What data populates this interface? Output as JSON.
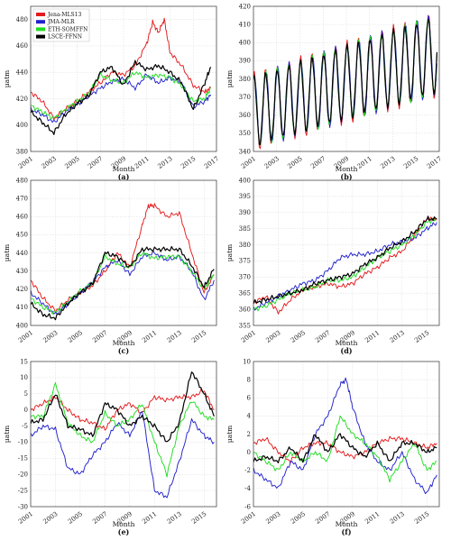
{
  "legend": {
    "entries": [
      {
        "name": "Jena-MLS13",
        "color": "#e41a1c"
      },
      {
        "name": "JMA-MLR",
        "color": "#2222cc"
      },
      {
        "name": "ETH-SOMFFN",
        "color": "#22dd22"
      },
      {
        "name": "LSCE-FFNN",
        "color": "#000000"
      }
    ],
    "placement": "top-left of panel (a)"
  },
  "chart_data": [
    {
      "type": "line",
      "panel": "(a)",
      "xlabel": "Month",
      "ylabel": "µatm",
      "xlim": [
        2001,
        2017
      ],
      "ylim": [
        380,
        490
      ],
      "grid": true,
      "xticks": [
        2001,
        2003,
        2005,
        2007,
        2009,
        2011,
        2013,
        2015,
        2017
      ],
      "yticks": [
        380,
        400,
        420,
        440,
        460,
        480
      ],
      "series": [
        {
          "name": "Jena-MLS13",
          "color": "#e41a1c",
          "x": [
            2001,
            2002,
            2003,
            2004,
            2005,
            2006,
            2007,
            2008,
            2009,
            2010,
            2011,
            2011.5,
            2012,
            2012.5,
            2013,
            2014,
            2015,
            2016,
            2016.5
          ],
          "y": [
            425,
            418,
            405,
            412,
            418,
            425,
            432,
            440,
            438,
            445,
            462,
            478,
            470,
            480,
            455,
            445,
            430,
            425,
            428
          ]
        },
        {
          "name": "JMA-MLR",
          "color": "#2222cc",
          "x": [
            2001,
            2002,
            2003,
            2004,
            2005,
            2006,
            2007,
            2008,
            2009,
            2010,
            2011,
            2012,
            2013,
            2014,
            2015,
            2016,
            2016.5
          ],
          "y": [
            412,
            408,
            402,
            410,
            416,
            422,
            428,
            433,
            435,
            428,
            438,
            432,
            436,
            432,
            414,
            418,
            423
          ]
        },
        {
          "name": "ETH-SOMFFN",
          "color": "#22dd22",
          "x": [
            2001,
            2002,
            2003,
            2004,
            2005,
            2006,
            2007,
            2008,
            2009,
            2010,
            2011,
            2012,
            2013,
            2014,
            2015,
            2016,
            2016.5
          ],
          "y": [
            415,
            410,
            405,
            412,
            418,
            424,
            438,
            434,
            432,
            440,
            436,
            438,
            436,
            430,
            418,
            420,
            428
          ]
        },
        {
          "name": "LSCE-FFNN",
          "color": "#000000",
          "x": [
            2001,
            2002,
            2003,
            2004,
            2005,
            2006,
            2007,
            2008,
            2009,
            2010,
            2011,
            2012,
            2013,
            2014,
            2015,
            2016,
            2016.5
          ],
          "y": [
            410,
            402,
            394,
            408,
            416,
            422,
            440,
            444,
            430,
            448,
            442,
            445,
            440,
            432,
            412,
            432,
            444
          ]
        }
      ]
    },
    {
      "type": "line",
      "panel": "(b)",
      "xlabel": "Month",
      "ylabel": "µatm",
      "xlim": [
        2001,
        2017
      ],
      "ylim": [
        340,
        420
      ],
      "grid": true,
      "xticks": [
        2001,
        2003,
        2005,
        2007,
        2009,
        2011,
        2013,
        2015,
        2017
      ],
      "yticks": [
        340,
        350,
        360,
        370,
        380,
        390,
        400,
        410,
        420
      ],
      "seasonal": {
        "amplitude_at": [
          [
            2001,
            20
          ],
          [
            2016,
            22
          ]
        ],
        "mean_at": [
          [
            2001,
            362
          ],
          [
            2016,
            392
          ]
        ]
      },
      "series": [
        {
          "name": "Jena-MLS13",
          "color": "#e41a1c"
        },
        {
          "name": "JMA-MLR",
          "color": "#2222cc"
        },
        {
          "name": "ETH-SOMFFN",
          "color": "#22dd22"
        },
        {
          "name": "LSCE-FFNN",
          "color": "#000000"
        }
      ]
    },
    {
      "type": "line",
      "panel": "(c)",
      "xlabel": "Month",
      "ylabel": "µatm",
      "xlim": [
        2001,
        2016
      ],
      "ylim": [
        400,
        480
      ],
      "grid": true,
      "xticks": [
        2001,
        2003,
        2005,
        2007,
        2009,
        2011,
        2013,
        2015
      ],
      "yticks": [
        400,
        410,
        420,
        430,
        440,
        450,
        460,
        470,
        480
      ],
      "series": [
        {
          "name": "Jena-MLS13",
          "color": "#e41a1c",
          "x": [
            2001,
            2002,
            2003,
            2004,
            2005,
            2006,
            2007,
            2008,
            2009,
            2010,
            2010.5,
            2011,
            2012,
            2013,
            2014,
            2015,
            2015.8
          ],
          "y": [
            425,
            415,
            408,
            414,
            418,
            422,
            430,
            440,
            432,
            455,
            466,
            466,
            460,
            462,
            440,
            418,
            428
          ]
        },
        {
          "name": "JMA-MLR",
          "color": "#2222cc",
          "x": [
            2001,
            2002,
            2003,
            2004,
            2005,
            2006,
            2007,
            2008,
            2009,
            2010,
            2011,
            2012,
            2013,
            2014,
            2015,
            2015.8
          ],
          "y": [
            418,
            412,
            406,
            412,
            418,
            424,
            432,
            436,
            428,
            438,
            440,
            436,
            438,
            430,
            414,
            425
          ]
        },
        {
          "name": "ETH-SOMFFN",
          "color": "#22dd22",
          "x": [
            2001,
            2002,
            2003,
            2004,
            2005,
            2006,
            2007,
            2008,
            2009,
            2010,
            2011,
            2012,
            2013,
            2014,
            2015,
            2015.8
          ],
          "y": [
            415,
            410,
            407,
            413,
            419,
            423,
            438,
            434,
            432,
            440,
            437,
            438,
            438,
            430,
            420,
            428
          ]
        },
        {
          "name": "LSCE-FFNN",
          "color": "#000000",
          "x": [
            2001,
            2002,
            2003,
            2004,
            2005,
            2006,
            2007,
            2008,
            2009,
            2010,
            2011,
            2012,
            2013,
            2014,
            2015,
            2015.8
          ],
          "y": [
            412,
            406,
            404,
            412,
            418,
            423,
            440,
            438,
            432,
            442,
            442,
            442,
            442,
            433,
            421,
            431
          ]
        }
      ]
    },
    {
      "type": "line",
      "panel": "(d)",
      "xlabel": "Month",
      "ylabel": "µatm",
      "xlim": [
        2001,
        2016
      ],
      "ylim": [
        355,
        400
      ],
      "grid": true,
      "xticks": [
        2001,
        2003,
        2005,
        2007,
        2009,
        2011,
        2013,
        2015
      ],
      "yticks": [
        355,
        360,
        365,
        370,
        375,
        380,
        385,
        390,
        395,
        400
      ],
      "series": [
        {
          "name": "Jena-MLS13",
          "color": "#e41a1c",
          "x": [
            2001,
            2002,
            2003,
            2004,
            2005,
            2006,
            2007,
            2008,
            2009,
            2010,
            2011,
            2012,
            2013,
            2014,
            2015,
            2015.8
          ],
          "y": [
            362,
            364,
            359,
            363,
            366,
            367,
            368,
            367,
            368,
            371,
            373,
            376,
            378,
            383,
            388,
            388
          ]
        },
        {
          "name": "JMA-MLR",
          "color": "#2222cc",
          "x": [
            2001,
            2002,
            2003,
            2004,
            2005,
            2006,
            2007,
            2008,
            2009,
            2010,
            2011,
            2012,
            2013,
            2014,
            2015,
            2015.8
          ],
          "y": [
            360,
            362,
            364,
            366,
            368,
            369,
            372,
            376,
            377,
            377,
            378,
            380,
            381,
            382,
            385,
            387
          ]
        },
        {
          "name": "ETH-SOMFFN",
          "color": "#22dd22",
          "x": [
            2001,
            2002,
            2003,
            2004,
            2005,
            2006,
            2007,
            2008,
            2009,
            2010,
            2011,
            2012,
            2013,
            2014,
            2015,
            2015.8
          ],
          "y": [
            360,
            361,
            363,
            365,
            366,
            367,
            369,
            369,
            370,
            373,
            376,
            378,
            380,
            383,
            387,
            388
          ]
        },
        {
          "name": "LSCE-FFNN",
          "color": "#000000",
          "x": [
            2001,
            2002,
            2003,
            2004,
            2005,
            2006,
            2007,
            2008,
            2009,
            2010,
            2011,
            2012,
            2013,
            2014,
            2015,
            2015.8
          ],
          "y": [
            362,
            363,
            364,
            365,
            366,
            368,
            369,
            370,
            371,
            374,
            376,
            379,
            381,
            384,
            388,
            388
          ]
        }
      ]
    },
    {
      "type": "line",
      "panel": "(e)",
      "xlabel": "Month",
      "ylabel": "µatm",
      "xlim": [
        2001,
        2016
      ],
      "ylim": [
        -30,
        15
      ],
      "grid": true,
      "xticks": [
        2001,
        2003,
        2005,
        2007,
        2009,
        2011,
        2013,
        2015
      ],
      "yticks": [
        -30,
        -25,
        -20,
        -15,
        -10,
        -5,
        0,
        5,
        10,
        15
      ],
      "series": [
        {
          "name": "Jena-MLS13",
          "color": "#e41a1c",
          "x": [
            2001,
            2002,
            2003,
            2004,
            2005,
            2006,
            2007,
            2008,
            2009,
            2010,
            2011,
            2012,
            2013,
            2014,
            2015,
            2015.8
          ],
          "y": [
            0,
            2,
            4,
            0,
            -3,
            -4,
            -6,
            0,
            2,
            -1,
            4,
            3,
            4,
            4,
            6,
            0
          ]
        },
        {
          "name": "JMA-MLR",
          "color": "#2222cc",
          "x": [
            2001,
            2002,
            2003,
            2004,
            2005,
            2006,
            2007,
            2008,
            2009,
            2010,
            2011,
            2012,
            2013,
            2014,
            2015,
            2015.8
          ],
          "y": [
            -8,
            -5,
            -6,
            -18,
            -20,
            -14,
            -10,
            -4,
            -8,
            0,
            -25,
            -27,
            -16,
            -3,
            -8,
            -10
          ]
        },
        {
          "name": "ETH-SOMFFN",
          "color": "#22dd22",
          "x": [
            2001,
            2002,
            2003,
            2004,
            2005,
            2006,
            2007,
            2008,
            2009,
            2010,
            2011,
            2012,
            2013,
            2014,
            2015,
            2015.8
          ],
          "y": [
            -2,
            -2,
            8,
            -4,
            -8,
            -10,
            -1,
            -5,
            -3,
            2,
            -10,
            -20,
            -5,
            3,
            -2,
            -3
          ]
        },
        {
          "name": "LSCE-FFNN",
          "color": "#000000",
          "x": [
            2001,
            2002,
            2003,
            2004,
            2005,
            2006,
            2007,
            2008,
            2009,
            2010,
            2011,
            2012,
            2013,
            2014,
            2015,
            2015.8
          ],
          "y": [
            -4,
            -3,
            5,
            -5,
            -6,
            -8,
            2,
            0,
            -5,
            -2,
            -5,
            -10,
            -4,
            12,
            5,
            -2
          ]
        }
      ]
    },
    {
      "type": "line",
      "panel": "(f)",
      "xlabel": "Month",
      "ylabel": "µatm",
      "xlim": [
        2001,
        2016
      ],
      "ylim": [
        -6,
        10
      ],
      "grid": true,
      "xticks": [
        2001,
        2003,
        2005,
        2007,
        2009,
        2011,
        2013,
        2015
      ],
      "yticks": [
        -6,
        -4,
        -2,
        0,
        2,
        4,
        6,
        8,
        10
      ],
      "series": [
        {
          "name": "Jena-MLS13",
          "color": "#e41a1c",
          "x": [
            2001,
            2002,
            2003,
            2004,
            2005,
            2006,
            2007,
            2008,
            2009,
            2010,
            2011,
            2012,
            2013,
            2014,
            2015,
            2015.8
          ],
          "y": [
            1,
            1.5,
            0,
            -1,
            0.5,
            1,
            1,
            0,
            -0.5,
            0,
            1,
            1.5,
            1.5,
            1,
            0.5,
            1
          ]
        },
        {
          "name": "JMA-MLR",
          "color": "#2222cc",
          "x": [
            2001,
            2002,
            2003,
            2004,
            2005,
            2006,
            2007,
            2008,
            2008.5,
            2009,
            2010,
            2011,
            2012,
            2013,
            2014,
            2015,
            2015.8
          ],
          "y": [
            -2,
            -3,
            -4,
            -1,
            -2,
            2,
            4,
            7.5,
            8,
            5,
            1,
            -1,
            -2,
            0,
            -3,
            -4.5,
            -2.5
          ]
        },
        {
          "name": "ETH-SOMFFN",
          "color": "#22dd22",
          "x": [
            2001,
            2002,
            2003,
            2004,
            2005,
            2006,
            2007,
            2008,
            2009,
            2010,
            2011,
            2012,
            2013,
            2014,
            2015,
            2015.8
          ],
          "y": [
            0,
            -1,
            -2,
            0,
            -1,
            0,
            -1,
            4,
            2,
            1,
            -0.5,
            -3,
            -1,
            1,
            -2,
            -1
          ]
        },
        {
          "name": "LSCE-FFNN",
          "color": "#000000",
          "x": [
            2001,
            2002,
            2003,
            2004,
            2005,
            2006,
            2007,
            2008,
            2009,
            2010,
            2011,
            2012,
            2013,
            2014,
            2015,
            2015.8
          ],
          "y": [
            -1,
            -0.5,
            -1,
            0.5,
            -1,
            2,
            0,
            2,
            0.5,
            -0.5,
            1,
            -1,
            1,
            1,
            0,
            0.5
          ]
        }
      ]
    }
  ]
}
